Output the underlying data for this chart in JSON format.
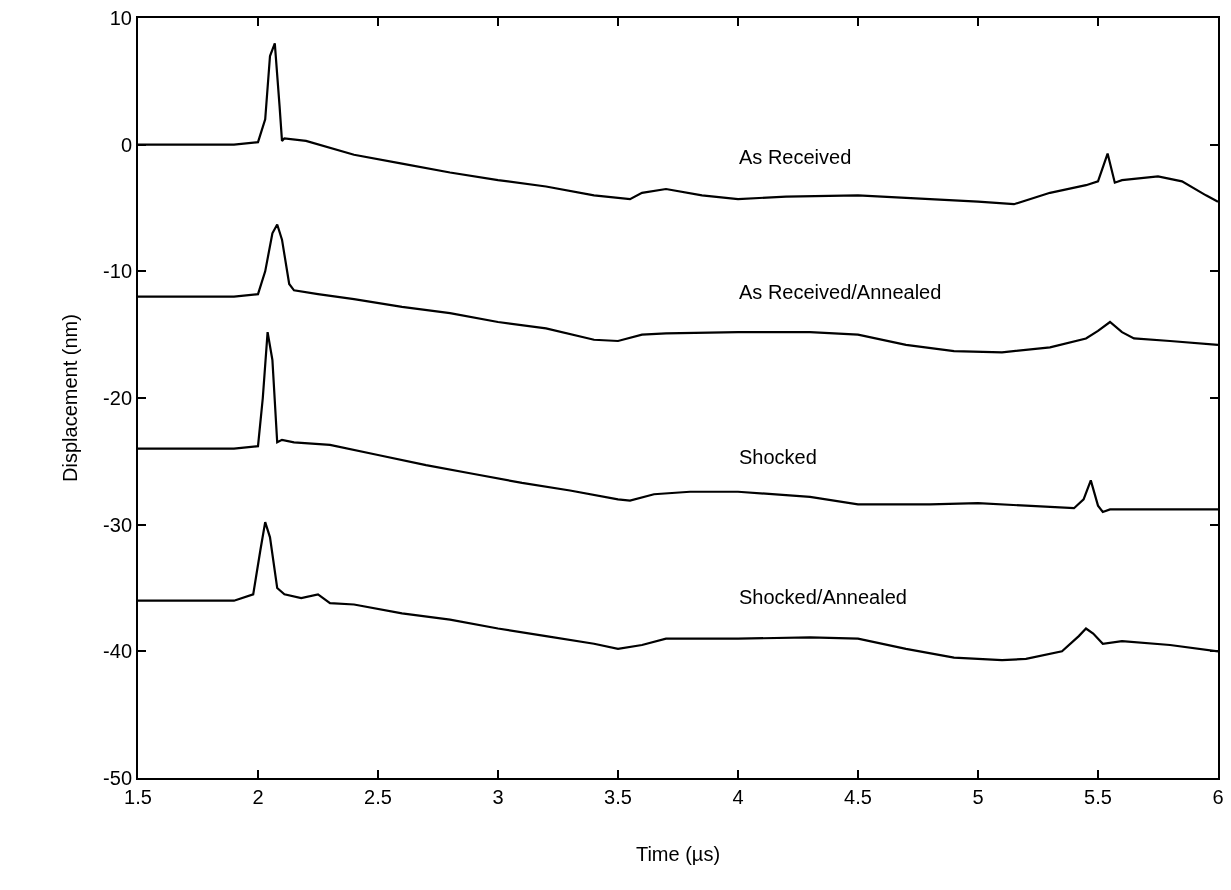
{
  "chart_data": {
    "type": "line",
    "xlabel": "Time (µs)",
    "ylabel": "Displacement (nm)",
    "xlim": [
      1.5,
      6
    ],
    "ylim": [
      -50,
      10
    ],
    "xticks": [
      1.5,
      2,
      2.5,
      3,
      3.5,
      4,
      4.5,
      5,
      5.5,
      6
    ],
    "yticks": [
      -50,
      -40,
      -30,
      -20,
      -10,
      0,
      10
    ],
    "grid": false,
    "legend": false,
    "marker": "none",
    "line_style": "solid",
    "series": [
      {
        "name": "As Received",
        "color": "#000000",
        "x": [
          1.5,
          1.7,
          1.9,
          2.0,
          2.03,
          2.05,
          2.07,
          2.09,
          2.1,
          2.11,
          2.2,
          2.4,
          2.6,
          2.8,
          3.0,
          3.2,
          3.4,
          3.55,
          3.6,
          3.7,
          3.85,
          4.0,
          4.2,
          4.5,
          4.8,
          5.0,
          5.15,
          5.3,
          5.45,
          5.5,
          5.54,
          5.57,
          5.6,
          5.75,
          5.85,
          5.95,
          6.0
        ],
        "values": [
          0,
          0,
          0,
          0.2,
          2,
          7,
          8,
          3,
          0.3,
          0.5,
          0.3,
          -0.8,
          -1.5,
          -2.2,
          -2.8,
          -3.3,
          -4,
          -4.3,
          -3.8,
          -3.5,
          -4,
          -4.3,
          -4.1,
          -4,
          -4.3,
          -4.5,
          -4.7,
          -3.8,
          -3.2,
          -2.9,
          -0.7,
          -3,
          -2.8,
          -2.5,
          -2.9,
          -4,
          -4.5
        ]
      },
      {
        "name": "As Received/Annealed",
        "color": "#000000",
        "x": [
          1.5,
          1.7,
          1.9,
          2.0,
          2.03,
          2.06,
          2.08,
          2.1,
          2.13,
          2.15,
          2.25,
          2.4,
          2.6,
          2.8,
          3.0,
          3.2,
          3.4,
          3.5,
          3.6,
          3.7,
          4.0,
          4.3,
          4.5,
          4.7,
          4.9,
          5.1,
          5.3,
          5.45,
          5.5,
          5.55,
          5.6,
          5.65,
          5.8,
          6.0
        ],
        "values": [
          -12,
          -12,
          -12,
          -11.8,
          -10,
          -7,
          -6.3,
          -7.5,
          -11,
          -11.5,
          -11.8,
          -12.2,
          -12.8,
          -13.3,
          -14,
          -14.5,
          -15.4,
          -15.5,
          -15,
          -14.9,
          -14.8,
          -14.8,
          -15,
          -15.8,
          -16.3,
          -16.4,
          -16,
          -15.3,
          -14.7,
          -14,
          -14.8,
          -15.3,
          -15.5,
          -15.8
        ]
      },
      {
        "name": "Shocked",
        "color": "#000000",
        "x": [
          1.5,
          1.7,
          1.9,
          2.0,
          2.02,
          2.04,
          2.06,
          2.08,
          2.1,
          2.15,
          2.3,
          2.5,
          2.7,
          2.9,
          3.1,
          3.3,
          3.5,
          3.55,
          3.65,
          3.8,
          4.0,
          4.3,
          4.5,
          4.8,
          5.0,
          5.2,
          5.4,
          5.44,
          5.47,
          5.5,
          5.52,
          5.55,
          5.7,
          6.0
        ],
        "values": [
          -24,
          -24,
          -24,
          -23.8,
          -20,
          -14.8,
          -17,
          -23.5,
          -23.3,
          -23.5,
          -23.7,
          -24.5,
          -25.3,
          -26,
          -26.7,
          -27.3,
          -28,
          -28.1,
          -27.6,
          -27.4,
          -27.4,
          -27.8,
          -28.4,
          -28.4,
          -28.3,
          -28.5,
          -28.7,
          -28,
          -26.5,
          -28.5,
          -29,
          -28.8,
          -28.8,
          -28.8
        ]
      },
      {
        "name": "Shocked/Annealed",
        "color": "#000000",
        "x": [
          1.5,
          1.7,
          1.9,
          1.98,
          2.01,
          2.03,
          2.05,
          2.08,
          2.11,
          2.18,
          2.25,
          2.3,
          2.4,
          2.6,
          2.8,
          3.0,
          3.2,
          3.4,
          3.5,
          3.6,
          3.7,
          4.0,
          4.3,
          4.5,
          4.7,
          4.9,
          5.1,
          5.2,
          5.35,
          5.42,
          5.45,
          5.48,
          5.52,
          5.6,
          5.8,
          6.0
        ],
        "values": [
          -36,
          -36,
          -36,
          -35.5,
          -32,
          -29.8,
          -31,
          -35,
          -35.5,
          -35.8,
          -35.5,
          -36.2,
          -36.3,
          -37,
          -37.5,
          -38.2,
          -38.8,
          -39.4,
          -39.8,
          -39.5,
          -39,
          -39,
          -38.9,
          -39,
          -39.8,
          -40.5,
          -40.7,
          -40.6,
          -40,
          -38.8,
          -38.2,
          -38.6,
          -39.4,
          -39.2,
          -39.5,
          -40
        ]
      }
    ]
  }
}
